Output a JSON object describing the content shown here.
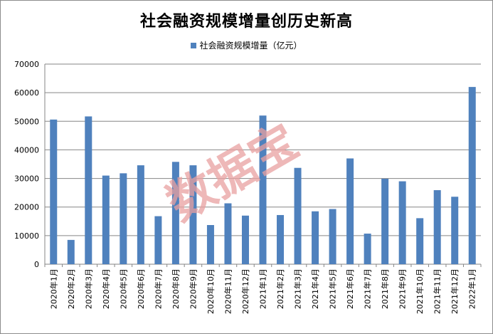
{
  "chart_data": {
    "type": "bar",
    "title": "社会融资规模增量创历史新高",
    "series": [
      {
        "name": "社会融资规模增量（亿元）",
        "color": "#4f81bd",
        "values": [
          50600,
          8500,
          51700,
          31000,
          31800,
          34600,
          16800,
          35800,
          34600,
          13700,
          21300,
          17000,
          52000,
          17200,
          33700,
          18500,
          19300,
          37000,
          10700,
          29900,
          29000,
          16100,
          25900,
          23600,
          62000
        ]
      }
    ],
    "categories": [
      "2020年1月",
      "2020年2月",
      "2020年3月",
      "2020年4月",
      "2020年5月",
      "2020年6月",
      "2020年7月",
      "2020年8月",
      "2020年9月",
      "2020年10月",
      "2020年11月",
      "2020年12月",
      "2021年1月",
      "2021年2月",
      "2021年3月",
      "2021年4月",
      "2021年5月",
      "2021年6月",
      "2021年7月",
      "2021年8月",
      "2021年9月",
      "2021年10月",
      "2021年11月",
      "2021年12月",
      "2022年1月"
    ],
    "yticks": [
      "0",
      "10000",
      "20000",
      "30000",
      "40000",
      "50000",
      "60000",
      "70000"
    ],
    "ylim": [
      0,
      70000
    ],
    "xlabel": "",
    "ylabel": "",
    "legend_position": "top-center",
    "grid": true,
    "grid_color": "#868686"
  },
  "watermark": {
    "text": "数据宝",
    "color": "#e8a0a0"
  }
}
